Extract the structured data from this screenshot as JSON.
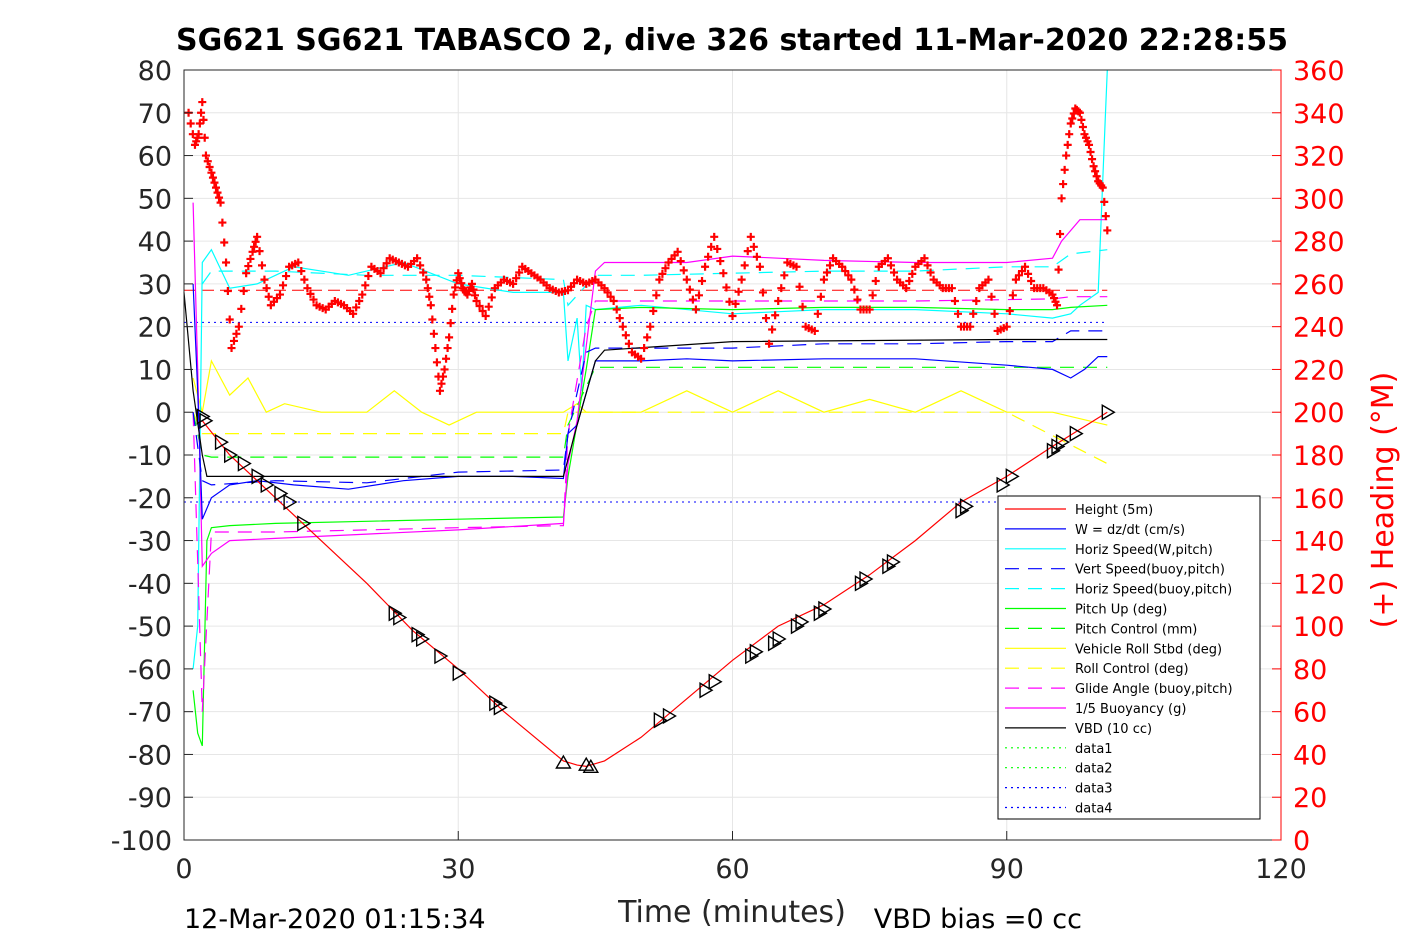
{
  "chart_data": {
    "type": "line",
    "title": "SG621 SG621 TABASCO 2, dive 326 started 11-Mar-2020 22:28:55",
    "xlabel": "Time (minutes)",
    "ylabel": "",
    "y2label": "(+) Heading (°M)",
    "xlim": [
      0,
      120
    ],
    "ylim": [
      -100,
      80
    ],
    "y2lim": [
      0,
      360
    ],
    "x_ticks": [
      "0",
      "30",
      "60",
      "90",
      "120"
    ],
    "y_ticks": [
      "80",
      "70",
      "60",
      "50",
      "40",
      "30",
      "20",
      "10",
      "0",
      "-10",
      "-20",
      "-30",
      "-40",
      "-50",
      "-60",
      "-70",
      "-80",
      "-90",
      "-100"
    ],
    "y2_ticks": [
      "360",
      "340",
      "320",
      "300",
      "280",
      "260",
      "240",
      "220",
      "200",
      "180",
      "160",
      "140",
      "120",
      "100",
      "80",
      "60",
      "40",
      "20",
      "0"
    ],
    "grid": true,
    "legend_position": "bottom-right",
    "footer_left": "12-Mar-2020 01:15:34",
    "footer_right": "VBD bias =0 cc",
    "colors": {
      "height": "#ff0000",
      "w": "#0000ff",
      "horiz_w": "#00ffff",
      "vert_buoy": "#0000ff",
      "horiz_buoy": "#00ffff",
      "pitch_up": "#00ff00",
      "pitch_control": "#00ff00",
      "roll": "#ffff00",
      "roll_control": "#ffff00",
      "glide_angle": "#ff00ff",
      "buoyancy": "#ff00ff",
      "vbd": "#000000",
      "heading": "#ff0000"
    },
    "series": [
      {
        "key": "height",
        "name": "Height (5m)",
        "x": [
          2,
          5,
          10,
          15,
          20,
          25,
          30,
          35,
          41.5,
          43,
          44,
          46,
          50,
          55,
          60,
          65,
          70,
          75,
          80,
          85,
          90,
          95,
          101
        ],
        "y": [
          -2,
          -10,
          -20,
          -30,
          -40,
          -51,
          -60,
          -70,
          -81.5,
          -82.5,
          -82.8,
          -81.5,
          -76,
          -67,
          -58,
          -50,
          -45,
          -38,
          -30,
          -21,
          -15,
          -8,
          0
        ]
      },
      {
        "key": "w",
        "name": "W = dz/dt (cm/s)",
        "x": [
          1,
          1.5,
          2,
          3,
          5,
          8,
          12,
          18,
          24,
          30,
          36,
          41.5,
          42,
          43,
          45,
          50,
          55,
          60,
          70,
          80,
          90,
          95,
          97,
          98.5,
          100,
          101
        ],
        "y": [
          30,
          5,
          -25,
          -20,
          -17,
          -16,
          -17,
          -18,
          -16,
          -15,
          -15,
          -15.5,
          -5,
          -3,
          12,
          12,
          12.5,
          12,
          12.5,
          12.5,
          11,
          10,
          8,
          10,
          13,
          13
        ]
      },
      {
        "key": "horiz_w",
        "name": "Horiz Speed(W,pitch)",
        "x": [
          1,
          1.5,
          2,
          3,
          5,
          8,
          12,
          18,
          24,
          30,
          36,
          41.5,
          42,
          43,
          43.5,
          44,
          45,
          50,
          60,
          70,
          80,
          90,
          95,
          97,
          98,
          100,
          100.8,
          101
        ],
        "y": [
          -60,
          -50,
          35,
          38,
          29,
          30,
          34,
          32,
          35,
          30,
          28,
          28,
          12,
          22,
          5,
          25,
          24,
          25,
          23,
          24,
          24,
          23,
          22,
          23,
          25,
          28,
          70,
          80
        ]
      },
      {
        "key": "vert_buoy",
        "name": "Vert Speed(buoy,pitch)",
        "dash": "14,9",
        "x": [
          1,
          2,
          3,
          10,
          20,
          30,
          41.5,
          42,
          44,
          45,
          50,
          60,
          70,
          80,
          90,
          95,
          97,
          101
        ],
        "y": [
          0,
          -16,
          -17,
          -16,
          -16.5,
          -14,
          -13.5,
          -5,
          14,
          15,
          15,
          15,
          16,
          16,
          16.5,
          16.5,
          19,
          19
        ]
      },
      {
        "key": "horiz_buoy",
        "name": "Horiz Speed(buoy,pitch)",
        "dash": "14,9",
        "x": [
          2,
          3,
          10,
          20,
          30,
          41.5,
          42,
          45,
          50,
          60,
          70,
          80,
          90,
          95,
          97,
          101
        ],
        "y": [
          30,
          33,
          33,
          32,
          32,
          31,
          25,
          32,
          32,
          32.5,
          33,
          33,
          34,
          34,
          37,
          38
        ]
      },
      {
        "key": "pitch_up",
        "name": "Pitch Up (deg)",
        "x": [
          1,
          1.5,
          2,
          2.5,
          3,
          5,
          10,
          20,
          30,
          41.5,
          42,
          44,
          45,
          50,
          60,
          70,
          80,
          90,
          95,
          97,
          101
        ],
        "y": [
          -65,
          -75,
          -78,
          -30,
          -27,
          -26.5,
          -26,
          -25.5,
          -25,
          -24.5,
          -15,
          10,
          24,
          24.5,
          24,
          24.5,
          24.5,
          24,
          24,
          24.5,
          25
        ]
      },
      {
        "key": "pitch_control",
        "name": "Pitch Control (mm)",
        "dash": "14,9",
        "x": [
          1,
          2,
          3,
          41.5,
          42,
          45,
          101
        ],
        "y": [
          0,
          -10,
          -10.5,
          -10.5,
          -3,
          10.5,
          10.5
        ]
      },
      {
        "key": "roll",
        "name": "Vehicle Roll Stbd (deg)",
        "x": [
          1,
          2,
          3,
          5,
          7,
          9,
          11,
          15,
          20,
          23,
          26,
          29,
          32,
          35,
          41.5,
          43,
          44,
          46,
          50,
          55,
          60,
          65,
          70,
          75,
          80,
          85,
          90,
          95,
          99,
          101
        ],
        "y": [
          8,
          0,
          12,
          4,
          8,
          0,
          2,
          0,
          0,
          5,
          0,
          -3,
          0,
          0,
          0,
          2,
          0,
          0,
          0,
          5,
          0,
          5,
          0,
          3,
          0,
          5,
          0,
          0,
          -2,
          -3
        ]
      },
      {
        "key": "roll_control",
        "name": "Roll Control (deg)",
        "dash": "14,9",
        "x": [
          1,
          2,
          10,
          20,
          41.5,
          42,
          55,
          70,
          90,
          101
        ],
        "y": [
          0,
          -5,
          -5,
          -5,
          -5,
          0,
          0,
          0,
          0,
          -12
        ]
      },
      {
        "key": "glide_angle",
        "name": "Glide Angle (buoy,pitch)",
        "dash": "14,9",
        "x": [
          1,
          2,
          3,
          10,
          20,
          30,
          41.5,
          42,
          44,
          45,
          60,
          80,
          95,
          97,
          101
        ],
        "y": [
          0,
          -70,
          -28,
          -28,
          -27.5,
          -27,
          -26.5,
          -5,
          20,
          26,
          26,
          26,
          26.5,
          27,
          27
        ]
      },
      {
        "key": "buoyancy",
        "name": "1/5 Buoyancy (g)",
        "x": [
          1,
          1.5,
          2,
          3,
          5,
          10,
          20,
          30,
          41.5,
          42,
          43,
          45,
          46,
          55,
          60,
          65,
          70,
          80,
          90,
          95,
          96,
          98,
          101
        ],
        "y": [
          49,
          10,
          -36,
          -33,
          -30,
          -29.5,
          -28.5,
          -27.5,
          -26,
          -12,
          -2,
          33,
          35,
          35,
          36.5,
          36,
          35.5,
          35,
          35,
          36,
          40,
          45,
          45
        ]
      },
      {
        "key": "vbd",
        "name": "VBD (10 cc)",
        "x": [
          0,
          1,
          2,
          2.5,
          41.5,
          43,
          45,
          46,
          60,
          90,
          101
        ],
        "y": [
          28,
          5,
          -10,
          -15,
          -15,
          -3,
          12,
          14.5,
          16.5,
          17,
          17
        ]
      },
      {
        "key": "data1",
        "name": "data1",
        "dash": "2,4",
        "color": "#00ff00",
        "x": [],
        "y": []
      },
      {
        "key": "data2",
        "name": "data2",
        "dash": "2,4",
        "color": "#00ff00",
        "x": [],
        "y": []
      },
      {
        "key": "data3",
        "name": "data3",
        "dash": "2,4",
        "color": "#0000ff",
        "x": [],
        "y": []
      },
      {
        "key": "data4",
        "name": "data4",
        "dash": "2,4",
        "color": "#0000ff",
        "x": [],
        "y": []
      }
    ],
    "ref_lines": [
      {
        "y": 28.5,
        "color": "#ff0000",
        "dash": "12,6"
      },
      {
        "y": 21,
        "color": "#0000ff",
        "dash": "2,4"
      },
      {
        "y": -21,
        "color": "#0000ff",
        "dash": "2,4"
      }
    ],
    "heading": {
      "name": "(+) Heading",
      "x": [
        0.5,
        1.2,
        1.6,
        2.0,
        2.4,
        3.0,
        3.5,
        4.0,
        4.6,
        5.2,
        6.0,
        6.8,
        7.5,
        8.0,
        8.8,
        9.5,
        10.5,
        11.5,
        12.5,
        13.5,
        14.5,
        15.5,
        16.5,
        17.5,
        18.5,
        19.5,
        20.5,
        21.5,
        22.5,
        23.5,
        24.5,
        25.5,
        26.5,
        27.0,
        27.5,
        28.0,
        28.5,
        29.0,
        29.5,
        30.0,
        30.5,
        31.0,
        31.5,
        32.0,
        33.0,
        34.0,
        35.0,
        36.0,
        37.0,
        38.0,
        39.0,
        40.0,
        41.0,
        42.0,
        43.0,
        44.0,
        45.0,
        46.0,
        47.0,
        48.0,
        49.0,
        50.0,
        51.0,
        52.0,
        53.0,
        54.0,
        55.0,
        56.0,
        57.0,
        58.0,
        59.0,
        60.0,
        61.0,
        62.0,
        63.0,
        64.0,
        65.0,
        66.0,
        67.0,
        68.0,
        69.0,
        70.0,
        71.0,
        72.0,
        73.0,
        74.0,
        75.0,
        76.0,
        77.0,
        78.0,
        79.0,
        80.0,
        81.0,
        82.0,
        83.0,
        84.0,
        85.0,
        86.0,
        87.0,
        88.0,
        89.0,
        90.0,
        91.0,
        92.0,
        93.0,
        94.0,
        95.0,
        95.5,
        96.0,
        96.5,
        97.0,
        97.5,
        98.0,
        98.5,
        99.0,
        99.5,
        100.0,
        100.5,
        101.0
      ],
      "y": [
        340,
        325,
        330,
        345,
        320,
        312,
        305,
        298,
        270,
        230,
        240,
        265,
        275,
        282,
        262,
        250,
        255,
        268,
        270,
        258,
        250,
        248,
        252,
        250,
        246,
        255,
        268,
        265,
        272,
        270,
        268,
        272,
        262,
        250,
        230,
        210,
        220,
        235,
        255,
        265,
        258,
        255,
        260,
        252,
        245,
        258,
        262,
        260,
        268,
        265,
        262,
        258,
        256,
        257,
        262,
        260,
        262,
        258,
        252,
        240,
        228,
        225,
        240,
        262,
        270,
        275,
        262,
        248,
        268,
        282,
        265,
        245,
        262,
        282,
        268,
        232,
        252,
        270,
        268,
        240,
        238,
        262,
        272,
        268,
        262,
        248,
        248,
        268,
        272,
        262,
        258,
        268,
        272,
        262,
        258,
        258,
        240,
        240,
        258,
        262,
        238,
        240,
        262,
        268,
        258,
        258,
        255,
        250,
        300,
        320,
        335,
        342,
        340,
        330,
        325,
        315,
        308,
        305,
        285
      ]
    },
    "markers": {
      "x": [
        2,
        2.3,
        4,
        5,
        6.5,
        8,
        9,
        10.5,
        11.5,
        13,
        23,
        23.5,
        25.5,
        26,
        28,
        30,
        34,
        34.5,
        41.5,
        44,
        44.5,
        52,
        53,
        57,
        58,
        62,
        62.5,
        64.5,
        65,
        67,
        67.5,
        69.5,
        70,
        74,
        74.5,
        77,
        77.5,
        85,
        85.5,
        89.5,
        90.5,
        95,
        95.5,
        96,
        97.5,
        101
      ],
      "y": [
        -1,
        -2,
        -7,
        -10,
        -12,
        -15,
        -17,
        -19,
        -21,
        -26,
        -47,
        -48,
        -52,
        -53,
        -57,
        -61,
        -68,
        -69,
        -82,
        -82.5,
        -83,
        -72,
        -71,
        -65,
        -63,
        -57,
        -56,
        -54,
        -53,
        -50,
        -49,
        -47,
        -46,
        -40,
        -39,
        -36,
        -35,
        -23,
        -22,
        -17,
        -15,
        -9,
        -8,
        -7,
        -5,
        0
      ]
    }
  }
}
